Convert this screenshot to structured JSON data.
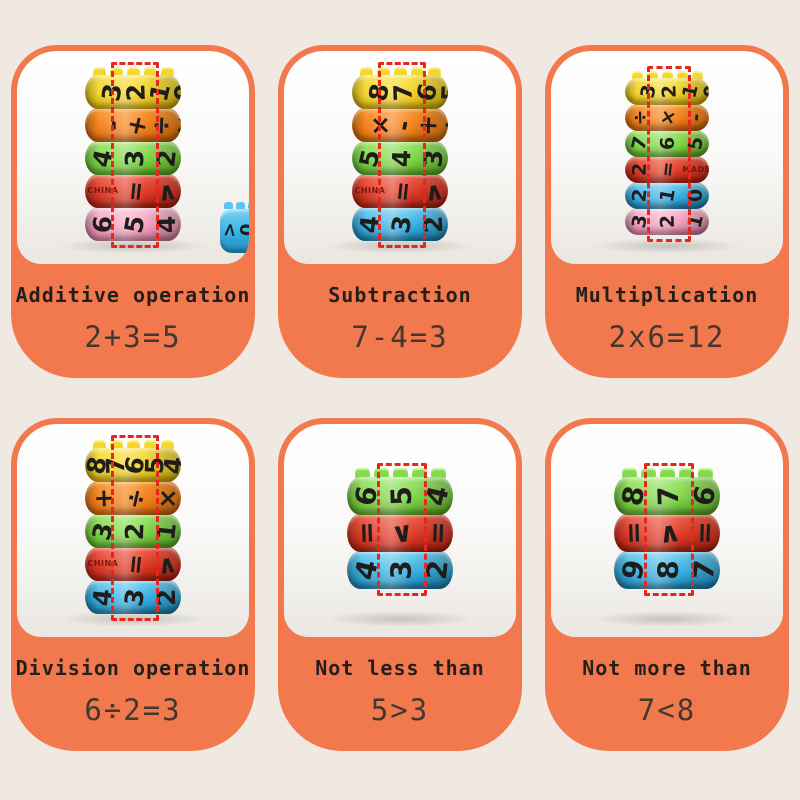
{
  "page": {
    "background_color": "#f0e9e1",
    "card_color": "#f2794d",
    "highlight_color": "#e8261c",
    "title_color": "#241f1c",
    "equation_color": "#43382f"
  },
  "panels": [
    {
      "title": "Additive operation",
      "equation": "2+3=5",
      "size": "lg",
      "side_piece": true,
      "rings": [
        {
          "color": "yellow",
          "shift": 16,
          "cells": [
            {
              "g": "3"
            },
            {
              "g": "2",
              "hl": 1
            },
            {
              "g": "1"
            },
            {
              "g": "0"
            }
          ]
        },
        {
          "color": "orange",
          "shift": 16,
          "cells": [
            {
              "g": "-"
            },
            {
              "g": "+",
              "hl": 1
            },
            {
              "g": "÷"
            },
            {
              "g": "×"
            }
          ]
        },
        {
          "color": "green",
          "shift": 2,
          "cells": [
            {
              "g": "4"
            },
            {
              "g": "3",
              "hl": 1
            },
            {
              "g": "2"
            }
          ]
        },
        {
          "color": "red",
          "shift": 2,
          "cells": [
            {
              "g": "CHINA",
              "small": 1
            },
            {
              "g": "=",
              "hl": 1
            },
            {
              "g": "∧",
              "r": -8
            }
          ]
        },
        {
          "color": "pink",
          "shift": 2,
          "cells": [
            {
              "g": "6"
            },
            {
              "g": "5",
              "hl": 1
            },
            {
              "g": "4"
            }
          ]
        }
      ]
    },
    {
      "title": "Subtraction",
      "equation": "7-4=3",
      "size": "lg",
      "rings": [
        {
          "color": "yellow",
          "shift": 16,
          "cells": [
            {
              "g": "8"
            },
            {
              "g": "7",
              "hl": 1
            },
            {
              "g": "6"
            },
            {
              "g": "5"
            }
          ]
        },
        {
          "color": "orange",
          "shift": 16,
          "cells": [
            {
              "g": "×"
            },
            {
              "g": "-",
              "hl": 1
            },
            {
              "g": "+"
            },
            {
              "g": "÷"
            }
          ]
        },
        {
          "color": "green",
          "shift": 2,
          "cells": [
            {
              "g": "5"
            },
            {
              "g": "4",
              "hl": 1
            },
            {
              "g": "3"
            }
          ]
        },
        {
          "color": "red",
          "shift": 2,
          "cells": [
            {
              "g": "CHINA",
              "small": 1
            },
            {
              "g": "=",
              "hl": 1
            },
            {
              "g": "∧",
              "r": -8
            }
          ]
        },
        {
          "color": "blue",
          "shift": 2,
          "cells": [
            {
              "g": "4"
            },
            {
              "g": "3",
              "hl": 1
            },
            {
              "g": "2"
            }
          ]
        }
      ]
    },
    {
      "title": "Multiplication",
      "equation": "2x6=12",
      "size": "sm",
      "rings": [
        {
          "color": "yellow",
          "shift": 16,
          "cells": [
            {
              "g": "3"
            },
            {
              "g": "2",
              "hl": 1
            },
            {
              "g": "1"
            },
            {
              "g": "0"
            }
          ]
        },
        {
          "color": "orange",
          "shift": 2,
          "cells": [
            {
              "g": "÷"
            },
            {
              "g": "×",
              "hl": 1
            },
            {
              "g": "-"
            }
          ]
        },
        {
          "color": "green",
          "shift": 2,
          "cells": [
            {
              "g": "7"
            },
            {
              "g": "6",
              "hl": 1
            },
            {
              "g": "5"
            }
          ]
        },
        {
          "color": "red",
          "shift": 2,
          "cells": [
            {
              "g": "2"
            },
            {
              "g": "=",
              "hl": 1
            },
            {
              "g": "MADE",
              "small": 1
            }
          ]
        },
        {
          "color": "blue",
          "shift": 2,
          "cells": [
            {
              "g": "2"
            },
            {
              "g": "1",
              "hl": 1
            },
            {
              "g": "0"
            }
          ]
        },
        {
          "color": "pink",
          "shift": 2,
          "cells": [
            {
              "g": "3"
            },
            {
              "g": "2",
              "hl": 1
            },
            {
              "g": "1"
            }
          ]
        }
      ]
    },
    {
      "title": "Division operation",
      "equation": "6÷2=3",
      "size": "lg",
      "rings": [
        {
          "color": "yellow",
          "shift": 2,
          "cells": [
            {
              "g": "8"
            },
            {
              "g": "7"
            },
            {
              "g": "6",
              "hl": 1
            },
            {
              "g": "5"
            },
            {
              "g": "4"
            }
          ]
        },
        {
          "color": "orange",
          "shift": 2,
          "cells": [
            {
              "g": "+"
            },
            {
              "g": "÷",
              "hl": 1
            },
            {
              "g": "×"
            }
          ]
        },
        {
          "color": "green",
          "shift": 2,
          "cells": [
            {
              "g": "3"
            },
            {
              "g": "2",
              "hl": 1
            },
            {
              "g": "1"
            }
          ]
        },
        {
          "color": "red",
          "shift": 2,
          "cells": [
            {
              "g": "CHINA",
              "small": 1
            },
            {
              "g": "=",
              "hl": 1
            },
            {
              "g": "∧",
              "r": -8
            }
          ]
        },
        {
          "color": "blue",
          "shift": 2,
          "cells": [
            {
              "g": "4"
            },
            {
              "g": "3",
              "hl": 1
            },
            {
              "g": "2"
            }
          ]
        }
      ]
    },
    {
      "title": "Not less than",
      "equation": "5>3",
      "size": "md",
      "rings": [
        {
          "color": "green",
          "shift": 2,
          "cells": [
            {
              "g": "6"
            },
            {
              "g": "5",
              "hl": 1
            },
            {
              "g": "4"
            }
          ]
        },
        {
          "color": "red",
          "shift": 2,
          "cells": [
            {
              "g": "="
            },
            {
              "g": "∨",
              "hl": 1,
              "r": -8
            },
            {
              "g": "="
            }
          ]
        },
        {
          "color": "blue",
          "shift": 2,
          "cells": [
            {
              "g": "4"
            },
            {
              "g": "3",
              "hl": 1
            },
            {
              "g": "2"
            }
          ]
        }
      ]
    },
    {
      "title": "Not more than",
      "equation": "7<8",
      "size": "md",
      "rings": [
        {
          "color": "green",
          "shift": 2,
          "cells": [
            {
              "g": "8"
            },
            {
              "g": "7",
              "hl": 1
            },
            {
              "g": "6"
            }
          ]
        },
        {
          "color": "red",
          "shift": 2,
          "cells": [
            {
              "g": "="
            },
            {
              "g": "∧",
              "hl": 1,
              "r": -8
            },
            {
              "g": "="
            }
          ]
        },
        {
          "color": "blue",
          "shift": 2,
          "cells": [
            {
              "g": "9"
            },
            {
              "g": "8",
              "hl": 1
            },
            {
              "g": "7"
            }
          ]
        }
      ]
    }
  ]
}
